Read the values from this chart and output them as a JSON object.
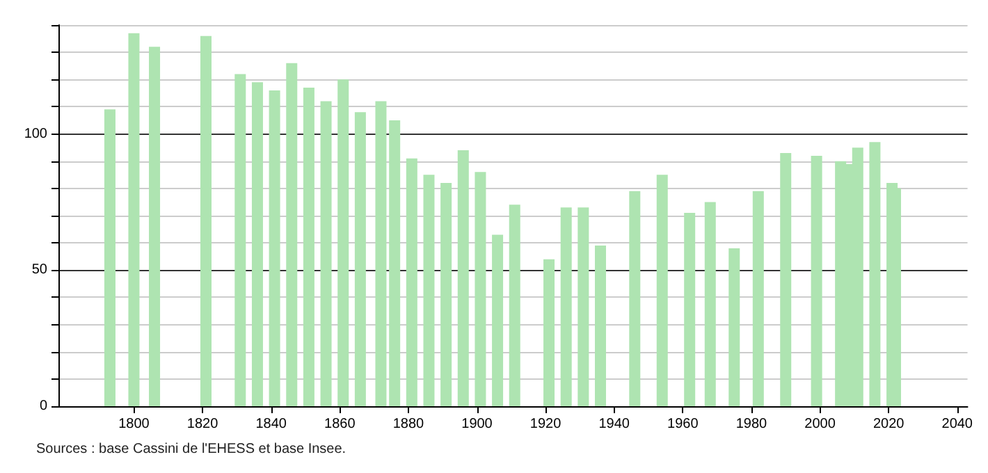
{
  "chart_data": {
    "type": "bar",
    "color": "#aee4b1",
    "x": [
      1793,
      1800,
      1806,
      1821,
      1831,
      1836,
      1841,
      1846,
      1851,
      1856,
      1861,
      1866,
      1872,
      1876,
      1881,
      1886,
      1891,
      1896,
      1901,
      1906,
      1911,
      1921,
      1926,
      1931,
      1936,
      1946,
      1954,
      1962,
      1968,
      1975,
      1982,
      1990,
      1999,
      2006,
      2008,
      2011,
      2016,
      2021,
      2022
    ],
    "values": [
      109,
      137,
      132,
      136,
      122,
      119,
      116,
      126,
      117,
      112,
      120,
      108,
      112,
      105,
      91,
      85,
      82,
      94,
      86,
      63,
      74,
      54,
      73,
      73,
      59,
      79,
      85,
      71,
      75,
      58,
      79,
      93,
      92,
      90,
      89,
      95,
      97,
      82,
      80
    ],
    "xlim": [
      1778,
      2043
    ],
    "xticks": [
      1800,
      1820,
      1840,
      1860,
      1880,
      1900,
      1920,
      1940,
      1960,
      1980,
      2000,
      2020,
      2040
    ],
    "ylim": [
      0,
      140
    ],
    "yticks": [
      0,
      {
        "value": 10,
        "label": null
      },
      {
        "value": 20,
        "label": null
      },
      {
        "value": 30,
        "label": null
      },
      {
        "value": 40,
        "label": null
      },
      50,
      {
        "value": 60,
        "label": null
      },
      {
        "value": 70,
        "label": null
      },
      {
        "value": 80,
        "label": null
      },
      {
        "value": 90,
        "label": null
      },
      100,
      {
        "value": 110,
        "label": null
      },
      {
        "value": 120,
        "label": null
      },
      {
        "value": 130,
        "label": null
      },
      {
        "value": 140,
        "label": null
      }
    ],
    "grid": "y",
    "annotations": [
      "Sources : base Cassini de l'EHESS et base Insee."
    ]
  }
}
